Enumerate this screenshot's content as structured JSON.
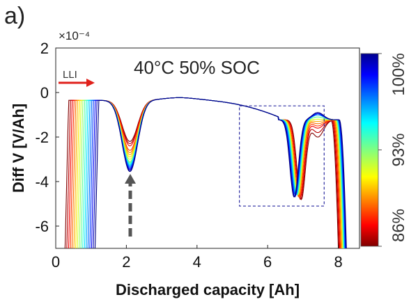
{
  "panel_label": "a)",
  "chart_data": {
    "type": "line",
    "title": "",
    "annotation": "40°C 50% SOC",
    "xlabel": "Discharged capacity [Ah]",
    "ylabel": "Diff V [V/Ah]",
    "y_exponent_label": "×10⁻⁴",
    "xlim": [
      0,
      8.6
    ],
    "ylim": [
      -7,
      2
    ],
    "xticks": [
      0,
      2,
      4,
      6,
      8
    ],
    "yticks": [
      2,
      0,
      -2,
      -4,
      -6
    ],
    "grid": false,
    "arrow_label": "LLI",
    "highlight_box": {
      "x": [
        5.2,
        7.6
      ],
      "y": [
        -5.1,
        -0.6
      ]
    },
    "colorbar": {
      "colormap": "jet",
      "range_percent": [
        86,
        100
      ],
      "tick_labels": [
        "86%",
        "93%",
        "100%"
      ],
      "tick_values": [
        86,
        93,
        100
      ]
    },
    "series_count": 18,
    "series": [
      {
        "soh_percent": 100.0,
        "start_capacity": 0.25,
        "peak1_depth": -2.2,
        "valley2_x": 6.95,
        "valley2_depth": -4.8,
        "peak2_height": -2.0,
        "end_capacity": 8.05
      },
      {
        "soh_percent": 99.2,
        "start_capacity": 0.3,
        "peak1_depth": -2.3,
        "valley2_x": 6.93,
        "valley2_depth": -4.8,
        "peak2_height": -1.8,
        "end_capacity": 8.07
      },
      {
        "soh_percent": 98.4,
        "start_capacity": 0.35,
        "peak1_depth": -2.4,
        "valley2_x": 6.92,
        "valley2_depth": -4.7,
        "peak2_height": -1.6,
        "end_capacity": 8.09
      },
      {
        "soh_percent": 97.5,
        "start_capacity": 0.4,
        "peak1_depth": -2.6,
        "valley2_x": 6.9,
        "valley2_depth": -4.7,
        "peak2_height": -1.5,
        "end_capacity": 8.11
      },
      {
        "soh_percent": 96.7,
        "start_capacity": 0.45,
        "peak1_depth": -2.7,
        "valley2_x": 6.88,
        "valley2_depth": -4.7,
        "peak2_height": -1.4,
        "end_capacity": 8.13
      },
      {
        "soh_percent": 95.9,
        "start_capacity": 0.5,
        "peak1_depth": -2.8,
        "valley2_x": 6.87,
        "valley2_depth": -4.6,
        "peak2_height": -1.3,
        "end_capacity": 8.15
      },
      {
        "soh_percent": 95.1,
        "start_capacity": 0.55,
        "peak1_depth": -2.9,
        "valley2_x": 6.86,
        "valley2_depth": -4.6,
        "peak2_height": -1.2,
        "end_capacity": 8.17
      },
      {
        "soh_percent": 94.2,
        "start_capacity": 0.6,
        "peak1_depth": -3.0,
        "valley2_x": 6.85,
        "valley2_depth": -4.6,
        "peak2_height": -1.2,
        "end_capacity": 8.18
      },
      {
        "soh_percent": 93.4,
        "start_capacity": 0.65,
        "peak1_depth": -3.1,
        "valley2_x": 6.84,
        "valley2_depth": -4.6,
        "peak2_height": -1.1,
        "end_capacity": 8.19
      },
      {
        "soh_percent": 92.6,
        "start_capacity": 0.7,
        "peak1_depth": -3.15,
        "valley2_x": 6.83,
        "valley2_depth": -4.6,
        "peak2_height": -1.1,
        "end_capacity": 8.2
      },
      {
        "soh_percent": 91.8,
        "start_capacity": 0.75,
        "peak1_depth": -3.2,
        "valley2_x": 6.82,
        "valley2_depth": -4.6,
        "peak2_height": -1.0,
        "end_capacity": 8.21
      },
      {
        "soh_percent": 90.9,
        "start_capacity": 0.8,
        "peak1_depth": -3.25,
        "valley2_x": 6.81,
        "valley2_depth": -4.6,
        "peak2_height": -1.0,
        "end_capacity": 8.22
      },
      {
        "soh_percent": 90.1,
        "start_capacity": 0.85,
        "peak1_depth": -3.3,
        "valley2_x": 6.8,
        "valley2_depth": -4.6,
        "peak2_height": -1.0,
        "end_capacity": 8.23
      },
      {
        "soh_percent": 89.3,
        "start_capacity": 0.9,
        "peak1_depth": -3.35,
        "valley2_x": 6.79,
        "valley2_depth": -4.6,
        "peak2_height": -1.0,
        "end_capacity": 8.24
      },
      {
        "soh_percent": 88.5,
        "start_capacity": 0.95,
        "peak1_depth": -3.4,
        "valley2_x": 6.78,
        "valley2_depth": -4.6,
        "peak2_height": -0.95,
        "end_capacity": 8.25
      },
      {
        "soh_percent": 87.6,
        "start_capacity": 1.0,
        "peak1_depth": -3.45,
        "valley2_x": 6.77,
        "valley2_depth": -4.7,
        "peak2_height": -0.95,
        "end_capacity": 8.26
      },
      {
        "soh_percent": 86.8,
        "start_capacity": 1.05,
        "peak1_depth": -3.5,
        "valley2_x": 6.76,
        "valley2_depth": -4.7,
        "peak2_height": -0.9,
        "end_capacity": 8.27
      },
      {
        "soh_percent": 86.0,
        "start_capacity": 1.1,
        "peak1_depth": -3.55,
        "valley2_x": 6.75,
        "valley2_depth": -4.7,
        "peak2_height": -0.9,
        "end_capacity": 8.28
      }
    ]
  }
}
